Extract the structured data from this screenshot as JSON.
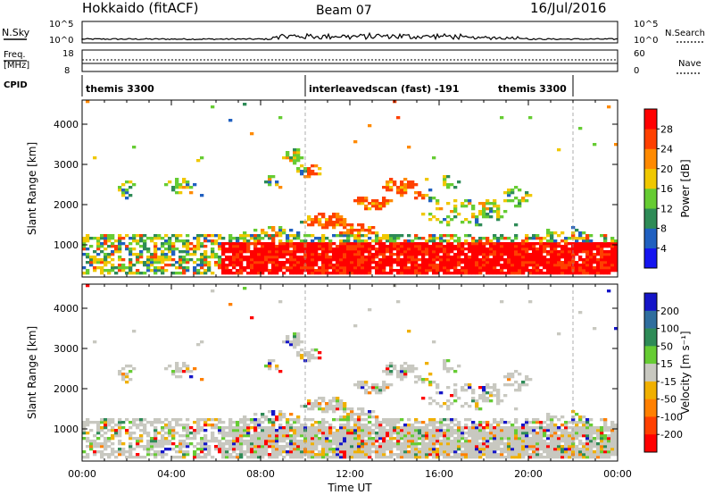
{
  "header": {
    "title": "Hokkaido (fitACF)",
    "beam": "Beam 07",
    "date": "16/Jul/2016"
  },
  "top_panel": {
    "left_label_1": "N.Sky",
    "left_label_2": "Freq.",
    "left_label_3": "[MHz]",
    "left_label_4": "CPID",
    "right_label_1": "N.Search",
    "right_label_2": "Nave",
    "nsky_ticks": [
      "10^5",
      "10^0"
    ],
    "nsearch_ticks": [
      "10^5",
      "10^0"
    ],
    "freq_ticks": [
      "18",
      "8"
    ],
    "nave_ticks": [
      "60",
      "0"
    ]
  },
  "cpid_segments": [
    {
      "label": "themis 3300",
      "start": 0.0,
      "end": 10.0
    },
    {
      "label": "interleavedscan (fast) -191",
      "start": 10.0,
      "end": 22.0
    },
    {
      "label": "themis 3300",
      "start": 22.0,
      "end": 24.0
    }
  ],
  "chart_data": [
    {
      "type": "heatmap",
      "name": "power-panel",
      "xlabel": "",
      "ylabel": "Slant Range [km]",
      "xlim": [
        0,
        24
      ],
      "ylim": [
        200,
        4600
      ],
      "yticks": [
        "1000",
        "2000",
        "3000",
        "4000"
      ],
      "colorbar_label": "Power [dB]",
      "colorbar_ticks": [
        "4",
        "8",
        "12",
        "16",
        "20",
        "24",
        "28"
      ],
      "colorbar_range": [
        0,
        32
      ],
      "colors": [
        "#1515f0",
        "#2060c0",
        "#2e8b57",
        "#66cc33",
        "#f0c800",
        "#ff8a00",
        "#ff4000",
        "#ff0000"
      ]
    },
    {
      "type": "heatmap",
      "name": "velocity-panel",
      "xlabel": "Time UT",
      "ylabel": "Slant Range [km]",
      "xlim": [
        0,
        24
      ],
      "ylim": [
        200,
        4600
      ],
      "xticks": [
        "00:00",
        "04:00",
        "08:00",
        "12:00",
        "16:00",
        "20:00",
        "00:00"
      ],
      "yticks": [
        "1000",
        "2000",
        "3000",
        "4000"
      ],
      "colorbar_label": "Velocity [m s⁻¹]",
      "colorbar_ticks": [
        "200",
        "100",
        "50",
        "15",
        "-15",
        "-50",
        "-100",
        "-200"
      ],
      "colorbar_range": [
        -250,
        250
      ],
      "colors": [
        "#1515c8",
        "#2f6e9e",
        "#2e8b57",
        "#66cc33",
        "#c8c8c0",
        "#f0b000",
        "#ff8000",
        "#ff4000",
        "#ff0000"
      ]
    }
  ]
}
